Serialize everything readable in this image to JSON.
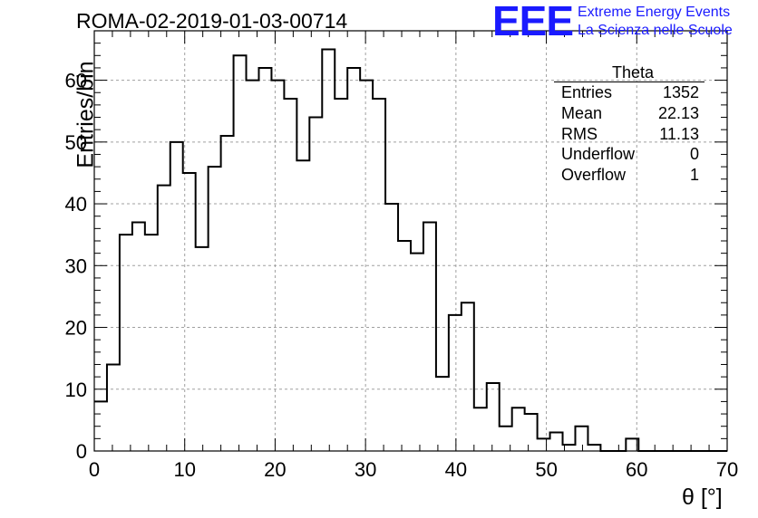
{
  "header": {
    "run_title": "ROMA-02-2019-01-03-00714",
    "logo_text": "EEE",
    "logo_line1": "Extreme Energy Events",
    "logo_line2": "La Scienza nelle Scuole"
  },
  "stats_box": {
    "title": "Theta",
    "rows": [
      {
        "label": "Entries",
        "value": "1352"
      },
      {
        "label": "Mean",
        "value": "22.13"
      },
      {
        "label": "RMS",
        "value": "11.13"
      },
      {
        "label": "Underflow",
        "value": "0"
      },
      {
        "label": "Overflow",
        "value": "1"
      }
    ]
  },
  "chart_data": {
    "type": "histogram",
    "xlabel": "θ [°]",
    "ylabel": "Entries/bin",
    "xlim": [
      0,
      70
    ],
    "ylim": [
      0,
      68
    ],
    "bin_width": 1.4,
    "xticks": [
      0,
      10,
      20,
      30,
      40,
      50,
      60,
      70
    ],
    "yticks": [
      0,
      10,
      20,
      30,
      40,
      50,
      60
    ],
    "grid": true,
    "line_color": "#000000",
    "values": [
      8,
      14,
      35,
      37,
      35,
      43,
      50,
      45,
      33,
      46,
      51,
      64,
      60,
      62,
      60,
      57,
      47,
      54,
      65,
      57,
      62,
      60,
      57,
      40,
      34,
      32,
      37,
      12,
      22,
      24,
      7,
      11,
      4,
      7,
      6,
      2,
      3,
      1,
      4,
      1,
      0,
      0,
      2,
      0,
      0,
      0,
      0,
      0,
      0,
      0
    ]
  },
  "colors": {
    "logo": "#1a1aff",
    "grid": "#a0a0a0"
  }
}
